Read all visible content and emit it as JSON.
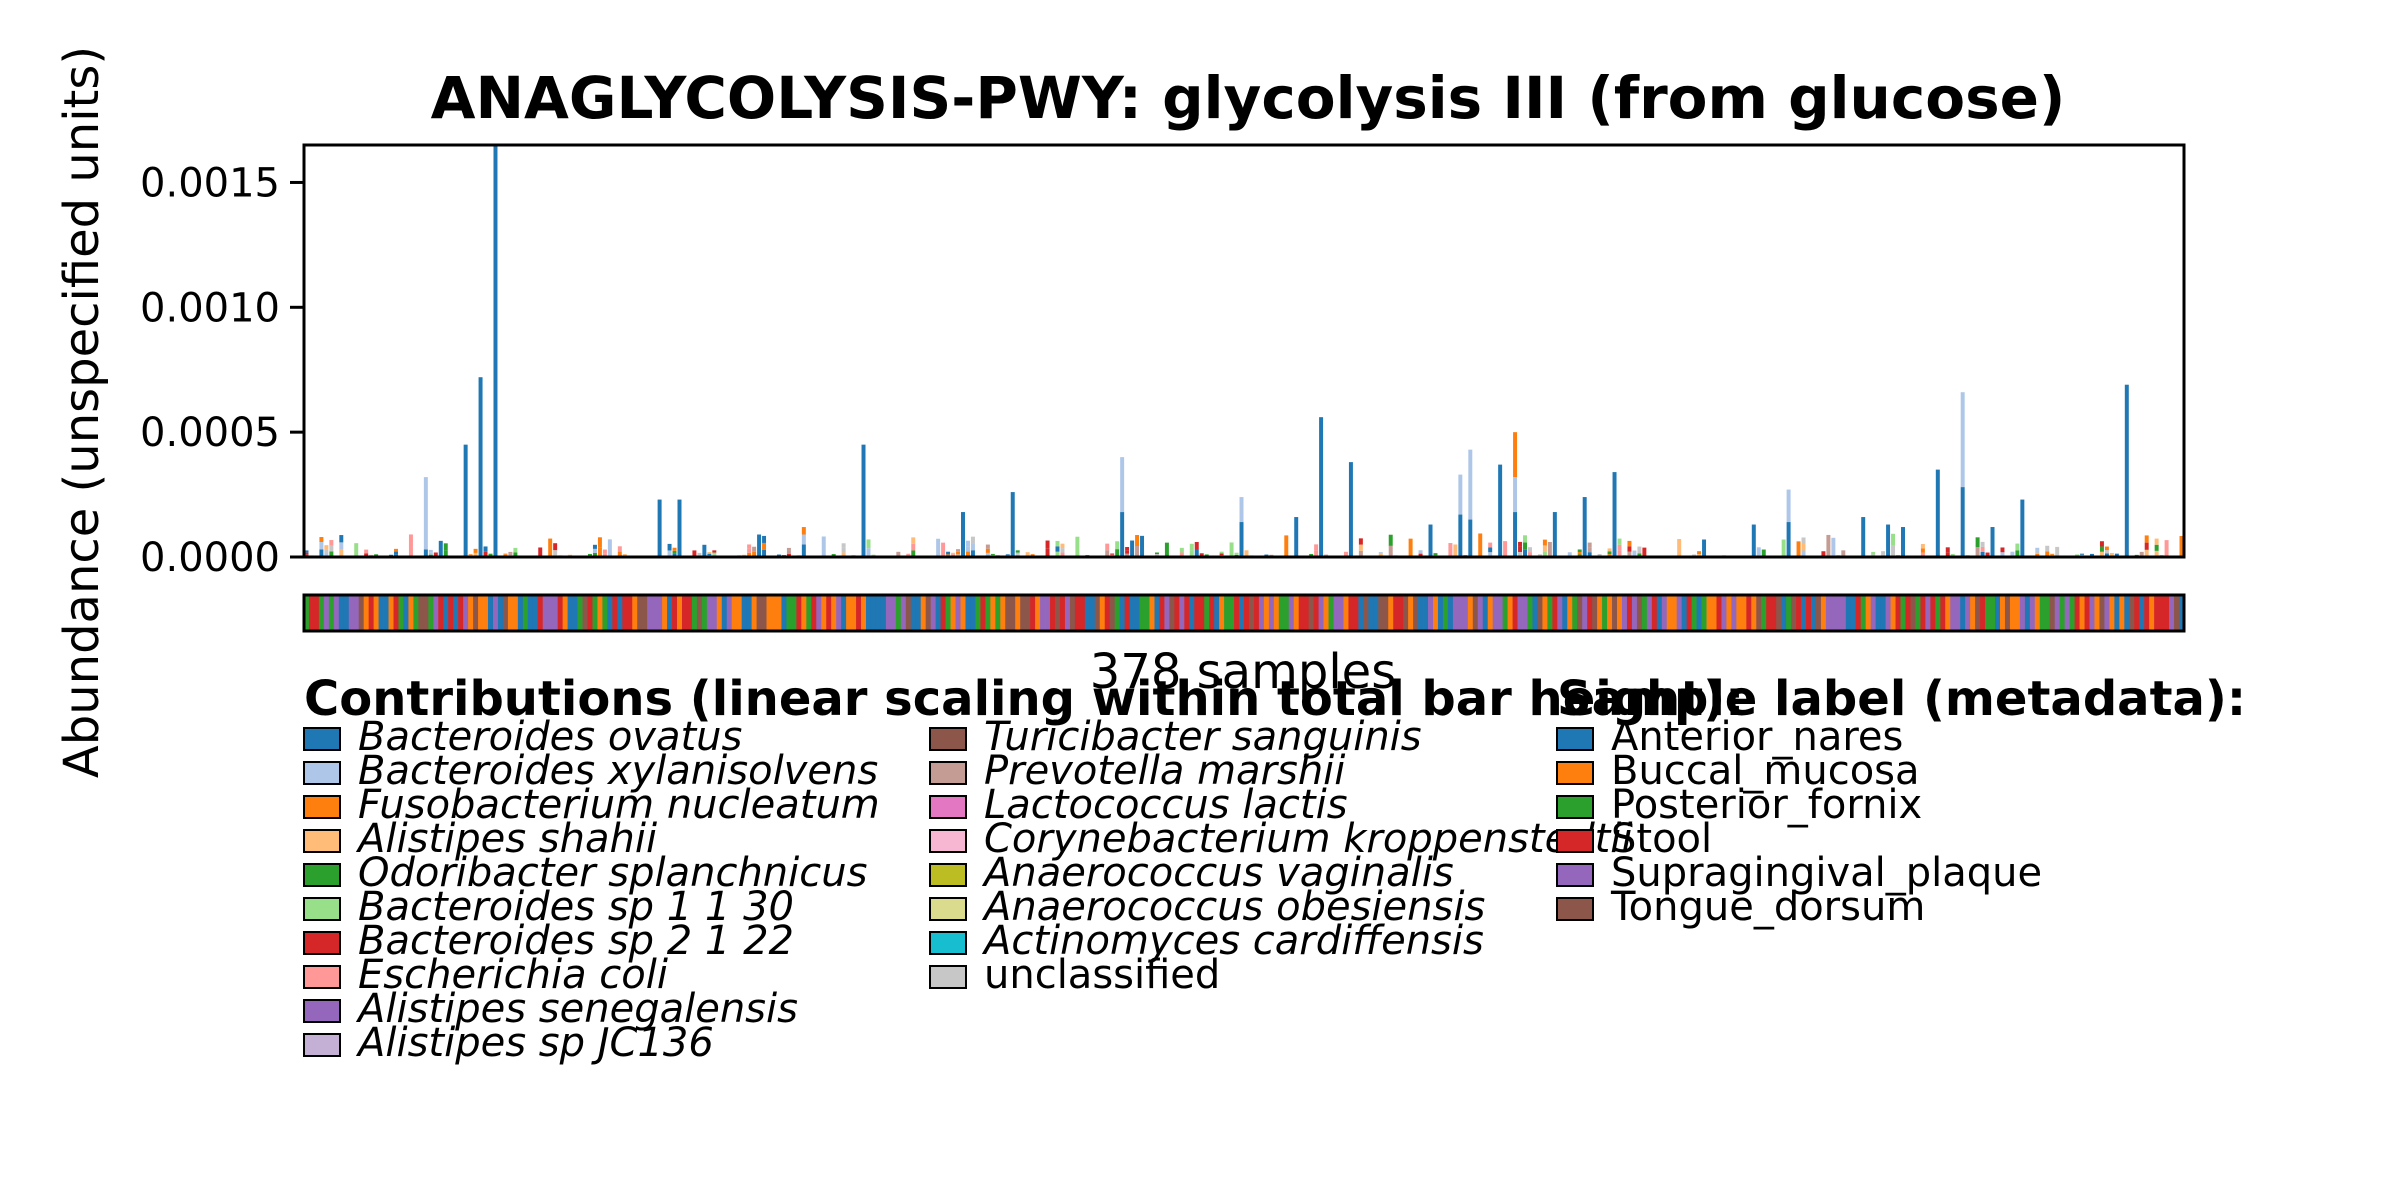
{
  "chart_data": {
    "type": "bar",
    "stacked": true,
    "title": "ANAGLYCOLYSIS-PWY: glycolysis III (from glucose)",
    "ylabel": "Abundance (unspecified units)",
    "xlabel": "378 samples",
    "ylim": [
      0,
      0.00165
    ],
    "yticks": [
      "0.0000",
      "0.0005",
      "0.0010",
      "0.0015"
    ],
    "ytick_values": [
      0,
      0.0005,
      0.001,
      0.0015
    ],
    "n_samples": 378,
    "grid": false,
    "species": [
      {
        "name": "Bacteroides ovatus",
        "color": "#1f77b4"
      },
      {
        "name": "Bacteroides xylanisolvens",
        "color": "#aec7e8"
      },
      {
        "name": "Fusobacterium nucleatum",
        "color": "#ff7f0e"
      },
      {
        "name": "Alistipes shahii",
        "color": "#ffbb78"
      },
      {
        "name": "Odoribacter splanchnicus",
        "color": "#2ca02c"
      },
      {
        "name": "Bacteroides sp 1 1 30",
        "color": "#98df8a"
      },
      {
        "name": "Bacteroides sp 2 1 22",
        "color": "#d62728"
      },
      {
        "name": "Escherichia coli",
        "color": "#ff9896"
      },
      {
        "name": "Alistipes senegalensis",
        "color": "#9467bd"
      },
      {
        "name": "Alistipes sp JC136",
        "color": "#c5b0d5"
      },
      {
        "name": "Turicibacter sanguinis",
        "color": "#8c564b"
      },
      {
        "name": "Prevotella marshii",
        "color": "#c49c94"
      },
      {
        "name": "Lactococcus lactis",
        "color": "#e377c2"
      },
      {
        "name": "Corynebacterium kroppenstedtii",
        "color": "#f7b6d2"
      },
      {
        "name": "Anaerococcus vaginalis",
        "color": "#bcbd22"
      },
      {
        "name": "Anaerococcus obesiensis",
        "color": "#dbdb8d"
      },
      {
        "name": "Actinomyces cardiffensis",
        "color": "#17becf"
      },
      {
        "name": "unclassified",
        "color": "#c7c7c7",
        "italic": false
      }
    ],
    "metadata_categories": [
      {
        "name": "Anterior_nares",
        "color": "#1f77b4"
      },
      {
        "name": "Buccal_mucosa",
        "color": "#ff7f0e"
      },
      {
        "name": "Posterior_fornix",
        "color": "#2ca02c"
      },
      {
        "name": "Stool",
        "color": "#d62728"
      },
      {
        "name": "Supragingival_plaque",
        "color": "#9467bd"
      },
      {
        "name": "Tongue_dorsum",
        "color": "#8c564b"
      }
    ],
    "legend": {
      "contributions_title": "Contributions (linear scaling within total bar height):",
      "metadata_title": "Sample label (metadata):",
      "placement": "below"
    },
    "notable_bars": [
      {
        "sample_index": 3,
        "segments": [
          3e-05,
          3e-05,
          2e-05
        ]
      },
      {
        "sample_index": 24,
        "segments": [
          3e-05,
          0.00029
        ]
      },
      {
        "sample_index": 32,
        "segments": [
          0.00045
        ]
      },
      {
        "sample_index": 35,
        "segments": [
          0.00072
        ]
      },
      {
        "sample_index": 38,
        "segments": [
          0.00166
        ]
      },
      {
        "sample_index": 71,
        "segments": [
          0.00023
        ]
      },
      {
        "sample_index": 75,
        "segments": [
          0.00023
        ]
      },
      {
        "sample_index": 100,
        "segments": [
          5e-05,
          4e-05,
          3e-05
        ]
      },
      {
        "sample_index": 112,
        "segments": [
          0.00045
        ]
      },
      {
        "sample_index": 132,
        "segments": [
          0.00018
        ]
      },
      {
        "sample_index": 142,
        "segments": [
          0.00026
        ]
      },
      {
        "sample_index": 164,
        "segments": [
          0.00018,
          0.00022
        ]
      },
      {
        "sample_index": 188,
        "segments": [
          0.00014,
          0.0001
        ]
      },
      {
        "sample_index": 199,
        "segments": [
          0.00016
        ]
      },
      {
        "sample_index": 204,
        "segments": [
          0.00056
        ]
      },
      {
        "sample_index": 210,
        "segments": [
          0.00038
        ]
      },
      {
        "sample_index": 226,
        "segments": [
          0.00013
        ]
      },
      {
        "sample_index": 232,
        "segments": [
          0.00017,
          0.00016
        ]
      },
      {
        "sample_index": 234,
        "segments": [
          0.00015,
          0.00028
        ]
      },
      {
        "sample_index": 240,
        "segments": [
          0.00037
        ]
      },
      {
        "sample_index": 243,
        "segments": [
          0.00018,
          0.00014,
          0.00018
        ]
      },
      {
        "sample_index": 251,
        "segments": [
          0.00018
        ]
      },
      {
        "sample_index": 257,
        "segments": [
          0.00024
        ]
      },
      {
        "sample_index": 263,
        "segments": [
          0.00034
        ]
      },
      {
        "sample_index": 281,
        "segments": [
          7e-05
        ]
      },
      {
        "sample_index": 291,
        "segments": [
          0.00013
        ]
      },
      {
        "sample_index": 298,
        "segments": [
          0.00014,
          0.00013
        ]
      },
      {
        "sample_index": 313,
        "segments": [
          0.00016
        ]
      },
      {
        "sample_index": 318,
        "segments": [
          0.00013
        ]
      },
      {
        "sample_index": 321,
        "segments": [
          0.00012
        ]
      },
      {
        "sample_index": 328,
        "segments": [
          0.00035
        ]
      },
      {
        "sample_index": 333,
        "segments": [
          0.00028,
          0.00038
        ]
      },
      {
        "sample_index": 339,
        "segments": [
          0.00012
        ]
      },
      {
        "sample_index": 345,
        "segments": [
          0.00023
        ]
      },
      {
        "sample_index": 366,
        "segments": [
          0.00069
        ]
      }
    ]
  }
}
